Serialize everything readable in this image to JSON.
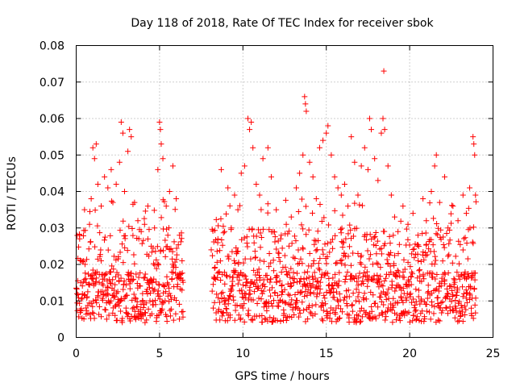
{
  "chart_data": {
    "type": "scatter",
    "title": "Day 118 of 2018, Rate Of TEC Index for receiver sbok",
    "xlabel": "GPS time / hours",
    "ylabel": "ROTI / TECUs",
    "xlim": [
      0,
      25
    ],
    "ylim": [
      0,
      0.08
    ],
    "x_ticks": [
      "0",
      "5",
      "10",
      "15",
      "20",
      "25"
    ],
    "y_ticks": [
      "0",
      "0.01",
      "0.02",
      "0.03",
      "0.04",
      "0.05",
      "0.06",
      "0.07",
      "0.08"
    ],
    "grid": true,
    "legend": "none",
    "marker": "plus",
    "color": "#ff0000",
    "data_gap_hours": [
      6.4,
      8.1
    ],
    "series": [
      {
        "points": [
          [
            0.05,
            0.012
          ],
          [
            0.2,
            0.028
          ],
          [
            0.3,
            0.021
          ],
          [
            0.5,
            0.035
          ],
          [
            0.6,
            0.015
          ],
          [
            0.8,
            0.031
          ],
          [
            0.9,
            0.038
          ],
          [
            1.0,
            0.052
          ],
          [
            1.1,
            0.049
          ],
          [
            1.2,
            0.053
          ],
          [
            1.3,
            0.042
          ],
          [
            1.5,
            0.036
          ],
          [
            1.7,
            0.044
          ],
          [
            1.9,
            0.041
          ],
          [
            2.1,
            0.046
          ],
          [
            2.2,
            0.037
          ],
          [
            2.4,
            0.042
          ],
          [
            2.6,
            0.048
          ],
          [
            2.7,
            0.059
          ],
          [
            2.8,
            0.056
          ],
          [
            2.9,
            0.04
          ],
          [
            3.1,
            0.051
          ],
          [
            3.2,
            0.057
          ],
          [
            3.3,
            0.055
          ],
          [
            3.5,
            0.037
          ],
          [
            3.7,
            0.032
          ],
          [
            3.9,
            0.029
          ],
          [
            4.1,
            0.031
          ],
          [
            4.3,
            0.027
          ],
          [
            4.5,
            0.025
          ],
          [
            4.7,
            0.03
          ],
          [
            4.9,
            0.046
          ],
          [
            5.0,
            0.059
          ],
          [
            5.05,
            0.057
          ],
          [
            5.1,
            0.053
          ],
          [
            5.2,
            0.049
          ],
          [
            5.4,
            0.036
          ],
          [
            5.6,
            0.04
          ],
          [
            5.8,
            0.047
          ],
          [
            6.0,
            0.038
          ],
          [
            6.2,
            0.028
          ],
          [
            6.35,
            0.021
          ],
          [
            8.1,
            0.024
          ],
          [
            8.3,
            0.019
          ],
          [
            8.5,
            0.027
          ],
          [
            8.7,
            0.046
          ],
          [
            8.9,
            0.029
          ],
          [
            9.1,
            0.041
          ],
          [
            9.3,
            0.03
          ],
          [
            9.5,
            0.039
          ],
          [
            9.7,
            0.035
          ],
          [
            9.9,
            0.045
          ],
          [
            10.1,
            0.047
          ],
          [
            10.3,
            0.06
          ],
          [
            10.4,
            0.057
          ],
          [
            10.5,
            0.059
          ],
          [
            10.6,
            0.052
          ],
          [
            10.8,
            0.042
          ],
          [
            11.0,
            0.039
          ],
          [
            11.2,
            0.049
          ],
          [
            11.5,
            0.052
          ],
          [
            11.7,
            0.044
          ],
          [
            12.0,
            0.035
          ],
          [
            12.3,
            0.028
          ],
          [
            12.6,
            0.031
          ],
          [
            12.9,
            0.033
          ],
          [
            13.2,
            0.041
          ],
          [
            13.4,
            0.045
          ],
          [
            13.6,
            0.05
          ],
          [
            13.7,
            0.066
          ],
          [
            13.75,
            0.064
          ],
          [
            13.8,
            0.062
          ],
          [
            14.0,
            0.048
          ],
          [
            14.2,
            0.044
          ],
          [
            14.4,
            0.038
          ],
          [
            14.6,
            0.052
          ],
          [
            14.8,
            0.054
          ],
          [
            15.0,
            0.056
          ],
          [
            15.1,
            0.058
          ],
          [
            15.3,
            0.05
          ],
          [
            15.5,
            0.044
          ],
          [
            15.7,
            0.041
          ],
          [
            15.9,
            0.039
          ],
          [
            16.1,
            0.042
          ],
          [
            16.3,
            0.036
          ],
          [
            16.5,
            0.055
          ],
          [
            16.7,
            0.048
          ],
          [
            16.9,
            0.039
          ],
          [
            17.1,
            0.047
          ],
          [
            17.3,
            0.052
          ],
          [
            17.5,
            0.046
          ],
          [
            17.6,
            0.06
          ],
          [
            17.7,
            0.057
          ],
          [
            17.9,
            0.049
          ],
          [
            18.1,
            0.043
          ],
          [
            18.3,
            0.056
          ],
          [
            18.4,
            0.06
          ],
          [
            18.45,
            0.073
          ],
          [
            18.5,
            0.057
          ],
          [
            18.7,
            0.047
          ],
          [
            18.9,
            0.039
          ],
          [
            19.1,
            0.033
          ],
          [
            19.3,
            0.029
          ],
          [
            19.6,
            0.036
          ],
          [
            19.9,
            0.031
          ],
          [
            20.2,
            0.034
          ],
          [
            20.5,
            0.028
          ],
          [
            20.8,
            0.038
          ],
          [
            21.0,
            0.032
          ],
          [
            21.3,
            0.04
          ],
          [
            21.5,
            0.047
          ],
          [
            21.6,
            0.05
          ],
          [
            21.8,
            0.037
          ],
          [
            22.1,
            0.044
          ],
          [
            22.3,
            0.03
          ],
          [
            22.6,
            0.036
          ],
          [
            22.9,
            0.032
          ],
          [
            23.2,
            0.039
          ],
          [
            23.4,
            0.034
          ],
          [
            23.6,
            0.041
          ],
          [
            23.8,
            0.055
          ],
          [
            23.85,
            0.053
          ],
          [
            23.9,
            0.05
          ],
          [
            23.95,
            0.039
          ]
        ]
      }
    ]
  }
}
